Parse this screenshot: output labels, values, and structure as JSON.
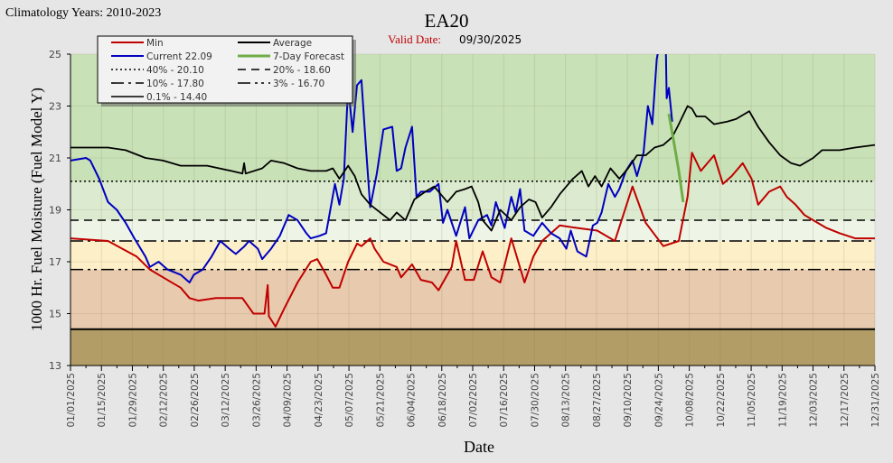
{
  "chart_data": {
    "type": "line",
    "header_left": "Climatology Years: 2010-2023",
    "title": "EA20",
    "valid_date_label": "Valid Date:",
    "valid_date": "09/30/2025",
    "xlabel": "Date",
    "ylabel": "1000 Hr. Fuel Moisture (Fuel Model Y)",
    "ylim": [
      13,
      25
    ],
    "yticks": [
      13,
      15,
      17,
      19,
      21,
      23,
      25
    ],
    "x_unit": "day of year 2025",
    "xlim": [
      0,
      365
    ],
    "xtick_labels": [
      "01/01/2025",
      "01/15/2025",
      "01/29/2025",
      "02/12/2025",
      "02/26/2025",
      "03/12/2025",
      "03/26/2025",
      "04/09/2025",
      "04/23/2025",
      "05/07/2025",
      "05/21/2025",
      "06/04/2025",
      "06/18/2025",
      "07/02/2025",
      "07/16/2025",
      "07/30/2025",
      "08/13/2025",
      "08/27/2025",
      "09/10/2025",
      "09/24/2025",
      "10/08/2025",
      "10/22/2025",
      "11/05/2025",
      "11/19/2025",
      "12/03/2025",
      "12/17/2025",
      "12/31/2025"
    ],
    "grid": true,
    "legend_position": "top-left",
    "bands": [
      {
        "from": 20.1,
        "to": 25,
        "color": "#c9e1b7"
      },
      {
        "from": 18.6,
        "to": 20.1,
        "color": "#dcebcf"
      },
      {
        "from": 17.8,
        "to": 18.6,
        "color": "#eef5e7"
      },
      {
        "from": 16.7,
        "to": 17.8,
        "color": "#fdf0c8"
      },
      {
        "from": 14.4,
        "to": 16.7,
        "color": "#e8caae"
      },
      {
        "from": 13,
        "to": 14.4,
        "color": "#b39d66"
      }
    ],
    "thresholds": [
      {
        "label": "40% -  20.10",
        "value": 20.1,
        "dash": "2,3"
      },
      {
        "label": "20% -  18.60",
        "value": 18.6,
        "dash": "9,6"
      },
      {
        "label": "10% -  17.80",
        "value": 17.8,
        "dash": "14,5,3,5"
      },
      {
        "label": "3% -  16.70",
        "value": 16.7,
        "dash": "14,5,3,4,3,5"
      },
      {
        "label": "0.1% -  14.40",
        "value": 14.4,
        "dash": ""
      }
    ],
    "series": [
      {
        "name": "Min",
        "color": "#c00000",
        "points": [
          [
            0,
            17.9
          ],
          [
            17,
            17.8
          ],
          [
            30,
            17.2
          ],
          [
            36,
            16.7
          ],
          [
            42,
            16.4
          ],
          [
            50,
            16.0
          ],
          [
            54,
            15.6
          ],
          [
            58,
            15.5
          ],
          [
            66,
            15.6
          ],
          [
            78,
            15.6
          ],
          [
            83,
            15.0
          ],
          [
            88,
            15.0
          ],
          [
            89.5,
            16.1
          ],
          [
            90,
            14.9
          ],
          [
            93,
            14.5
          ],
          [
            97,
            15.2
          ],
          [
            103,
            16.2
          ],
          [
            109,
            17.0
          ],
          [
            112,
            17.1
          ],
          [
            116,
            16.5
          ],
          [
            119,
            16.0
          ],
          [
            122,
            16.0
          ],
          [
            126,
            17.0
          ],
          [
            130,
            17.7
          ],
          [
            132,
            17.6
          ],
          [
            136,
            17.9
          ],
          [
            138,
            17.5
          ],
          [
            142,
            17.0
          ],
          [
            148,
            16.8
          ],
          [
            150,
            16.4
          ],
          [
            155,
            16.9
          ],
          [
            159,
            16.3
          ],
          [
            164,
            16.2
          ],
          [
            167,
            15.9
          ],
          [
            173,
            16.8
          ],
          [
            175,
            17.8
          ],
          [
            179,
            16.3
          ],
          [
            183,
            16.3
          ],
          [
            187,
            17.4
          ],
          [
            191,
            16.4
          ],
          [
            195,
            16.2
          ],
          [
            200,
            17.9
          ],
          [
            206,
            16.2
          ],
          [
            210,
            17.2
          ],
          [
            214,
            17.8
          ],
          [
            222,
            18.4
          ],
          [
            230,
            18.3
          ],
          [
            239,
            18.2
          ],
          [
            247,
            17.8
          ],
          [
            255,
            19.9
          ],
          [
            261,
            18.5
          ],
          [
            269,
            17.6
          ],
          [
            276,
            17.8
          ],
          [
            280,
            19.5
          ],
          [
            282,
            21.2
          ],
          [
            286,
            20.5
          ],
          [
            292,
            21.1
          ],
          [
            296,
            20.0
          ],
          [
            300,
            20.3
          ],
          [
            305,
            20.8
          ],
          [
            309,
            20.2
          ],
          [
            312,
            19.2
          ],
          [
            317,
            19.7
          ],
          [
            322,
            19.9
          ],
          [
            325,
            19.5
          ],
          [
            329,
            19.2
          ],
          [
            333,
            18.8
          ],
          [
            337,
            18.6
          ],
          [
            343,
            18.3
          ],
          [
            349,
            18.1
          ],
          [
            356,
            17.9
          ],
          [
            365,
            17.9
          ]
        ]
      },
      {
        "name": "Current 22.09",
        "color": "#0000c0",
        "points": [
          [
            0,
            20.9
          ],
          [
            7,
            21.0
          ],
          [
            9,
            20.9
          ],
          [
            13,
            20.2
          ],
          [
            17,
            19.3
          ],
          [
            21,
            19.0
          ],
          [
            25,
            18.5
          ],
          [
            29,
            17.9
          ],
          [
            34,
            17.2
          ],
          [
            36,
            16.8
          ],
          [
            40,
            17.0
          ],
          [
            44,
            16.7
          ],
          [
            50,
            16.5
          ],
          [
            54,
            16.2
          ],
          [
            56,
            16.5
          ],
          [
            60,
            16.7
          ],
          [
            64,
            17.2
          ],
          [
            68,
            17.8
          ],
          [
            72,
            17.5
          ],
          [
            75,
            17.3
          ],
          [
            79,
            17.6
          ],
          [
            81,
            17.8
          ],
          [
            85,
            17.5
          ],
          [
            87,
            17.1
          ],
          [
            91,
            17.5
          ],
          [
            95,
            18.0
          ],
          [
            99,
            18.8
          ],
          [
            103,
            18.6
          ],
          [
            107,
            18.1
          ],
          [
            109,
            17.9
          ],
          [
            113,
            18.0
          ],
          [
            116,
            18.1
          ],
          [
            120,
            20.0
          ],
          [
            122,
            19.2
          ],
          [
            124,
            20.2
          ],
          [
            126,
            23.8
          ],
          [
            128,
            22.0
          ],
          [
            130,
            23.8
          ],
          [
            132,
            24.0
          ],
          [
            134,
            21.5
          ],
          [
            136,
            19.1
          ],
          [
            139,
            20.4
          ],
          [
            142,
            22.1
          ],
          [
            146,
            22.2
          ],
          [
            148,
            20.5
          ],
          [
            150,
            20.6
          ],
          [
            152,
            21.4
          ],
          [
            155,
            22.2
          ],
          [
            157,
            19.5
          ],
          [
            159,
            19.7
          ],
          [
            163,
            19.7
          ],
          [
            167,
            20.0
          ],
          [
            169,
            18.5
          ],
          [
            171,
            19.0
          ],
          [
            175,
            18.0
          ],
          [
            179,
            19.1
          ],
          [
            181,
            17.9
          ],
          [
            185,
            18.6
          ],
          [
            189,
            18.8
          ],
          [
            191,
            18.4
          ],
          [
            193,
            19.3
          ],
          [
            197,
            18.3
          ],
          [
            200,
            19.5
          ],
          [
            202,
            18.9
          ],
          [
            204,
            19.8
          ],
          [
            206,
            18.2
          ],
          [
            210,
            18.0
          ],
          [
            214,
            18.5
          ],
          [
            218,
            18.1
          ],
          [
            222,
            17.9
          ],
          [
            225,
            17.5
          ],
          [
            227,
            18.2
          ],
          [
            230,
            17.4
          ],
          [
            234,
            17.2
          ],
          [
            237,
            18.4
          ],
          [
            239,
            18.5
          ],
          [
            241,
            18.9
          ],
          [
            244,
            20.0
          ],
          [
            247,
            19.5
          ],
          [
            249,
            19.8
          ],
          [
            252,
            20.5
          ],
          [
            255,
            20.9
          ],
          [
            257,
            20.3
          ],
          [
            260,
            21.2
          ],
          [
            262,
            23.0
          ],
          [
            264,
            22.3
          ],
          [
            266,
            24.8
          ],
          [
            268,
            25.8
          ],
          [
            270,
            25.8
          ],
          [
            270.5,
            23.3
          ],
          [
            271.5,
            23.7
          ],
          [
            273,
            22.4
          ]
        ]
      },
      {
        "name": "Average",
        "color": "#000000",
        "points": [
          [
            0,
            21.4
          ],
          [
            9,
            21.4
          ],
          [
            17,
            21.4
          ],
          [
            25,
            21.3
          ],
          [
            34,
            21.0
          ],
          [
            42,
            20.9
          ],
          [
            50,
            20.7
          ],
          [
            62,
            20.7
          ],
          [
            73,
            20.5
          ],
          [
            78,
            20.4
          ],
          [
            78.8,
            20.8
          ],
          [
            79.5,
            20.4
          ],
          [
            87,
            20.6
          ],
          [
            91,
            20.9
          ],
          [
            97,
            20.8
          ],
          [
            103,
            20.6
          ],
          [
            109,
            20.5
          ],
          [
            116,
            20.5
          ],
          [
            119,
            20.6
          ],
          [
            122,
            20.2
          ],
          [
            126,
            20.7
          ],
          [
            129,
            20.3
          ],
          [
            132,
            19.6
          ],
          [
            136,
            19.2
          ],
          [
            142,
            18.8
          ],
          [
            145,
            18.6
          ],
          [
            148,
            18.9
          ],
          [
            152,
            18.6
          ],
          [
            156,
            19.4
          ],
          [
            161,
            19.7
          ],
          [
            165,
            19.9
          ],
          [
            168,
            19.6
          ],
          [
            171,
            19.3
          ],
          [
            175,
            19.7
          ],
          [
            179,
            19.8
          ],
          [
            182,
            19.9
          ],
          [
            185,
            19.3
          ],
          [
            187,
            18.6
          ],
          [
            191,
            18.2
          ],
          [
            195,
            19.0
          ],
          [
            200,
            18.6
          ],
          [
            204,
            19.1
          ],
          [
            208,
            19.4
          ],
          [
            211,
            19.3
          ],
          [
            214,
            18.7
          ],
          [
            218,
            19.1
          ],
          [
            222,
            19.6
          ],
          [
            225,
            19.9
          ],
          [
            228,
            20.2
          ],
          [
            232,
            20.5
          ],
          [
            235,
            19.9
          ],
          [
            238,
            20.3
          ],
          [
            241,
            19.9
          ],
          [
            245,
            20.6
          ],
          [
            249,
            20.2
          ],
          [
            253,
            20.6
          ],
          [
            257,
            21.1
          ],
          [
            261,
            21.1
          ],
          [
            265,
            21.4
          ],
          [
            269,
            21.5
          ],
          [
            273,
            21.8
          ],
          [
            276,
            22.3
          ],
          [
            280,
            23.0
          ],
          [
            282,
            22.9
          ],
          [
            284,
            22.6
          ],
          [
            288,
            22.6
          ],
          [
            292,
            22.3
          ],
          [
            298,
            22.4
          ],
          [
            302,
            22.5
          ],
          [
            306,
            22.7
          ],
          [
            308,
            22.8
          ],
          [
            312,
            22.2
          ],
          [
            317,
            21.6
          ],
          [
            322,
            21.1
          ],
          [
            327,
            20.8
          ],
          [
            331,
            20.7
          ],
          [
            337,
            21.0
          ],
          [
            341,
            21.3
          ],
          [
            349,
            21.3
          ],
          [
            356,
            21.4
          ],
          [
            365,
            21.5
          ]
        ]
      },
      {
        "name": "7-Day Forecast",
        "color": "#70ad47",
        "points": [
          [
            271.5,
            22.7
          ],
          [
            274,
            21.5
          ],
          [
            276,
            20.5
          ],
          [
            278,
            19.3
          ]
        ]
      }
    ]
  }
}
